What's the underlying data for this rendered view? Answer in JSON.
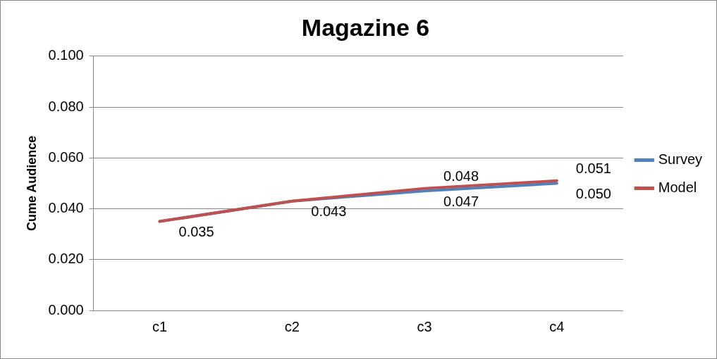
{
  "chart_data": {
    "type": "line",
    "title": "Magazine 6",
    "ylabel": "Cume Audience",
    "categories": [
      "c1",
      "c2",
      "c3",
      "c4"
    ],
    "series": [
      {
        "name": "Survey",
        "color": "#4f81bd",
        "values": [
          0.035,
          0.043,
          0.047,
          0.05
        ],
        "value_labels": [
          "0.035",
          "0.043",
          "0.047",
          "0.050"
        ]
      },
      {
        "name": "Model",
        "color": "#c0504d",
        "values": [
          0.035,
          0.043,
          0.048,
          0.051
        ],
        "value_labels": [
          null,
          null,
          "0.048",
          "0.051"
        ]
      }
    ],
    "ylim": [
      0,
      0.1
    ],
    "yticks": [
      {
        "value": 0,
        "label": "0.000"
      },
      {
        "value": 0.02,
        "label": "0.020"
      },
      {
        "value": 0.04,
        "label": "0.040"
      },
      {
        "value": 0.06,
        "label": "0.060"
      },
      {
        "value": 0.08,
        "label": "0.080"
      },
      {
        "value": 0.1,
        "label": "0.100"
      }
    ],
    "grid": "y",
    "legend": "right",
    "marker": "none",
    "line_style": "solid"
  }
}
